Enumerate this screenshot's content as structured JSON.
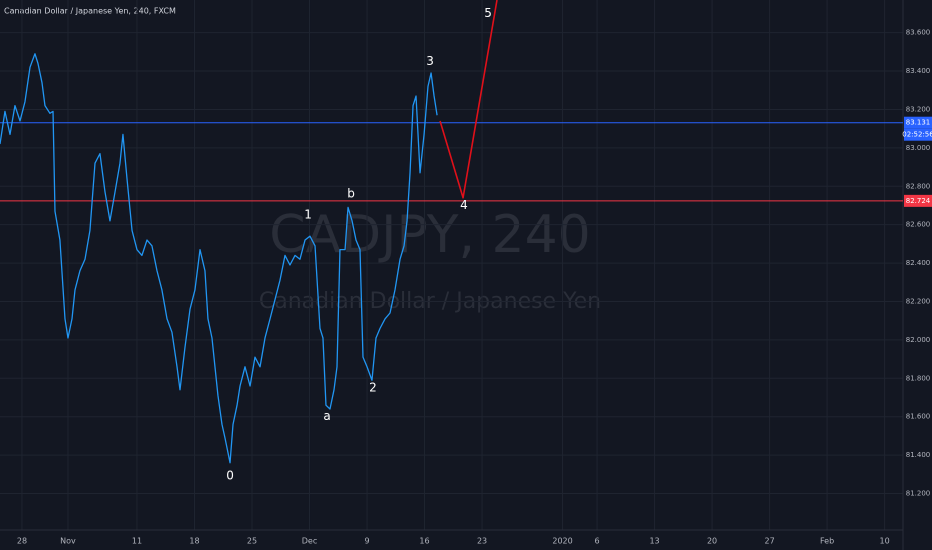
{
  "chart_data": {
    "type": "line",
    "title": "Canadian Dollar / Japanese Yen, 240, FXCM",
    "watermark": "CADJPY, 240",
    "watermark_subtitle": "Canadian Dollar / Japanese Yen",
    "xlim": [
      -1.91,
      76.6
    ],
    "ylim": [
      81.01,
      83.77
    ],
    "xticks": [
      {
        "value": 0,
        "label": "28"
      },
      {
        "value": 4,
        "label": "Nov"
      },
      {
        "value": 10,
        "label": "11"
      },
      {
        "value": 15,
        "label": "18"
      },
      {
        "value": 20,
        "label": "25"
      },
      {
        "value": 25,
        "label": "Dec"
      },
      {
        "value": 30,
        "label": "9"
      },
      {
        "value": 35,
        "label": "16"
      },
      {
        "value": 40,
        "label": "23"
      },
      {
        "value": 47,
        "label": "2020"
      },
      {
        "value": 50,
        "label": "6"
      },
      {
        "value": 55,
        "label": "13"
      },
      {
        "value": 60,
        "label": "20"
      },
      {
        "value": 65,
        "label": "27"
      },
      {
        "value": 70,
        "label": "Feb"
      },
      {
        "value": 75,
        "label": "10"
      }
    ],
    "yticks": [
      {
        "value": 81.2,
        "label": "81.200"
      },
      {
        "value": 81.4,
        "label": "81.400"
      },
      {
        "value": 81.6,
        "label": "81.600"
      },
      {
        "value": 81.8,
        "label": "81.800"
      },
      {
        "value": 82,
        "label": "82.000"
      },
      {
        "value": 82.2,
        "label": "82.200"
      },
      {
        "value": 82.4,
        "label": "82.400"
      },
      {
        "value": 82.6,
        "label": "82.600"
      },
      {
        "value": 82.8,
        "label": "82.800"
      },
      {
        "value": 83,
        "label": "83.000"
      },
      {
        "value": 83.2,
        "label": "83.200"
      },
      {
        "value": 83.4,
        "label": "83.400"
      },
      {
        "value": 83.6,
        "label": "83.600"
      }
    ],
    "grid": true,
    "series": [
      {
        "name": "CADJPY",
        "color": "#2196f3",
        "x": [
          -1.91,
          -1.48,
          -1.04,
          -0.61,
          -0.17,
          0.26,
          0.7,
          1.13,
          1.39,
          1.74,
          2.0,
          2.43,
          2.7,
          2.87,
          3.3,
          3.74,
          4.0,
          4.35,
          4.61,
          5.04,
          5.48,
          5.91,
          6.35,
          6.78,
          7.22,
          7.65,
          8.09,
          8.52,
          8.78,
          9.13,
          9.57,
          10.0,
          10.43,
          10.87,
          11.3,
          11.74,
          12.17,
          12.61,
          13.04,
          13.48,
          13.74,
          14.17,
          14.61,
          15.04,
          15.48,
          15.91,
          16.17,
          16.52,
          16.78,
          17.04,
          17.39,
          17.65,
          18.09,
          18.35,
          18.7,
          18.96,
          19.39,
          19.83,
          20.26,
          20.7,
          21.13,
          21.57,
          22.0,
          22.43,
          22.87,
          23.3,
          23.74,
          24.17,
          24.61,
          25.04,
          25.48,
          25.91,
          26.17,
          26.43,
          26.78,
          27.13,
          27.39,
          27.65,
          28.09,
          28.35,
          28.7,
          29.04,
          29.39,
          29.65,
          30.0,
          30.43,
          30.78,
          31.13,
          31.57,
          32.0,
          32.43,
          32.87,
          33.22,
          33.48,
          33.74,
          34.0,
          34.26,
          34.61,
          34.96,
          35.3,
          35.57,
          35.83,
          36.09
        ],
        "values": [
          83.02,
          83.19,
          83.07,
          83.22,
          83.14,
          83.24,
          83.42,
          83.49,
          83.44,
          83.34,
          83.22,
          83.18,
          83.19,
          82.67,
          82.52,
          82.11,
          82.01,
          82.11,
          82.26,
          82.36,
          82.42,
          82.57,
          82.92,
          82.97,
          82.77,
          82.62,
          82.77,
          82.92,
          83.07,
          82.84,
          82.57,
          82.47,
          82.44,
          82.52,
          82.49,
          82.36,
          82.26,
          82.11,
          82.04,
          81.86,
          81.74,
          81.96,
          82.16,
          82.26,
          82.47,
          82.36,
          82.11,
          82.01,
          81.86,
          81.71,
          81.56,
          81.49,
          81.36,
          81.56,
          81.66,
          81.76,
          81.86,
          81.76,
          81.91,
          81.86,
          82.01,
          82.11,
          82.21,
          82.31,
          82.44,
          82.39,
          82.44,
          82.42,
          82.52,
          82.54,
          82.49,
          82.06,
          82.01,
          81.66,
          81.64,
          81.74,
          81.86,
          82.47,
          82.47,
          82.69,
          82.62,
          82.52,
          82.47,
          81.91,
          81.86,
          81.79,
          82.01,
          82.06,
          82.11,
          82.14,
          82.26,
          82.42,
          82.49,
          82.62,
          82.87,
          83.22,
          83.27,
          82.87,
          83.07,
          83.32,
          83.39,
          83.27,
          83.17
        ]
      },
      {
        "name": "Projection",
        "color": "#e0101a",
        "x": [
          36.35,
          38.35,
          41.3
        ],
        "values": [
          83.14,
          82.74,
          83.77
        ]
      }
    ],
    "price_lines": [
      {
        "value": 83.131,
        "color": "#2962ff",
        "countdown": "02:52:56"
      },
      {
        "value": 82.724,
        "color": "#f23645"
      }
    ],
    "annotations": [
      {
        "text": "0",
        "x": 18.09,
        "y": 81.29
      },
      {
        "text": "1",
        "x": 24.87,
        "y": 82.65
      },
      {
        "text": "a",
        "x": 26.52,
        "y": 81.6
      },
      {
        "text": "b",
        "x": 28.61,
        "y": 82.76
      },
      {
        "text": "2",
        "x": 30.52,
        "y": 81.75
      },
      {
        "text": "3",
        "x": 35.48,
        "y": 83.45
      },
      {
        "text": "4",
        "x": 38.43,
        "y": 82.7
      },
      {
        "text": "5",
        "x": 40.52,
        "y": 83.7
      }
    ]
  }
}
